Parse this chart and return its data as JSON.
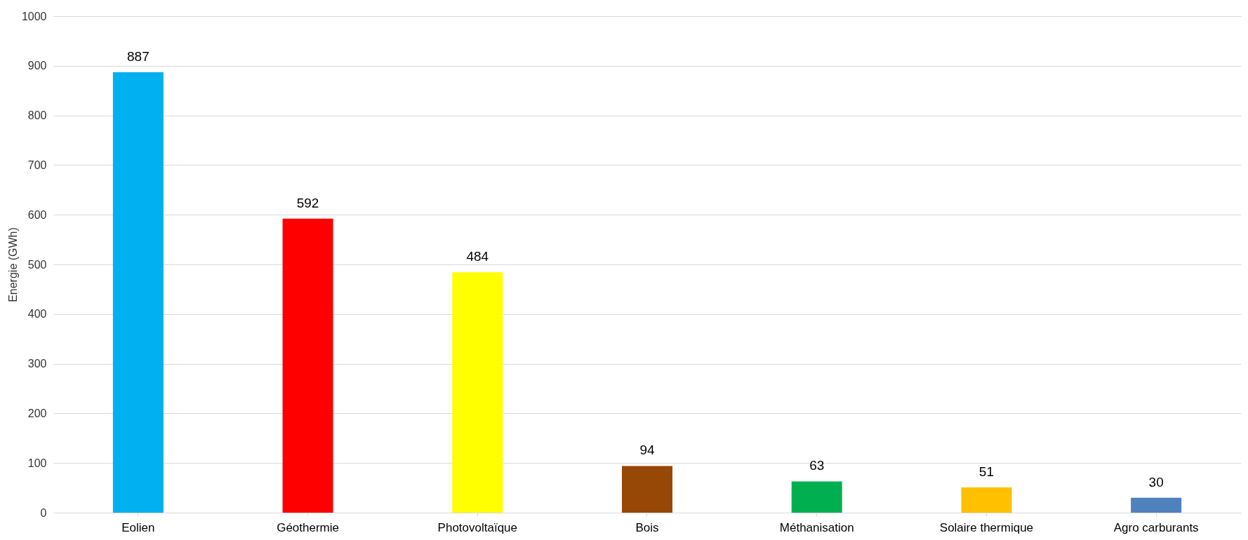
{
  "chart_data": {
    "type": "bar",
    "ylabel": "Energie (GWh)",
    "categories": [
      "Eolien",
      "Géothermie",
      "Photovoltaïque",
      "Bois",
      "Méthanisation",
      "Solaire thermique",
      "Agro carburants"
    ],
    "values": [
      887,
      592,
      484,
      94,
      63,
      51,
      30
    ],
    "colors": [
      "#00b0f0",
      "#ff0000",
      "#ffff00",
      "#974706",
      "#00b050",
      "#ffc000",
      "#4f81bd"
    ],
    "ylim": [
      0,
      1000
    ],
    "yticks": [
      0,
      100,
      200,
      300,
      400,
      500,
      600,
      700,
      800,
      900,
      1000
    ],
    "grid": "y",
    "data_labels": true
  }
}
